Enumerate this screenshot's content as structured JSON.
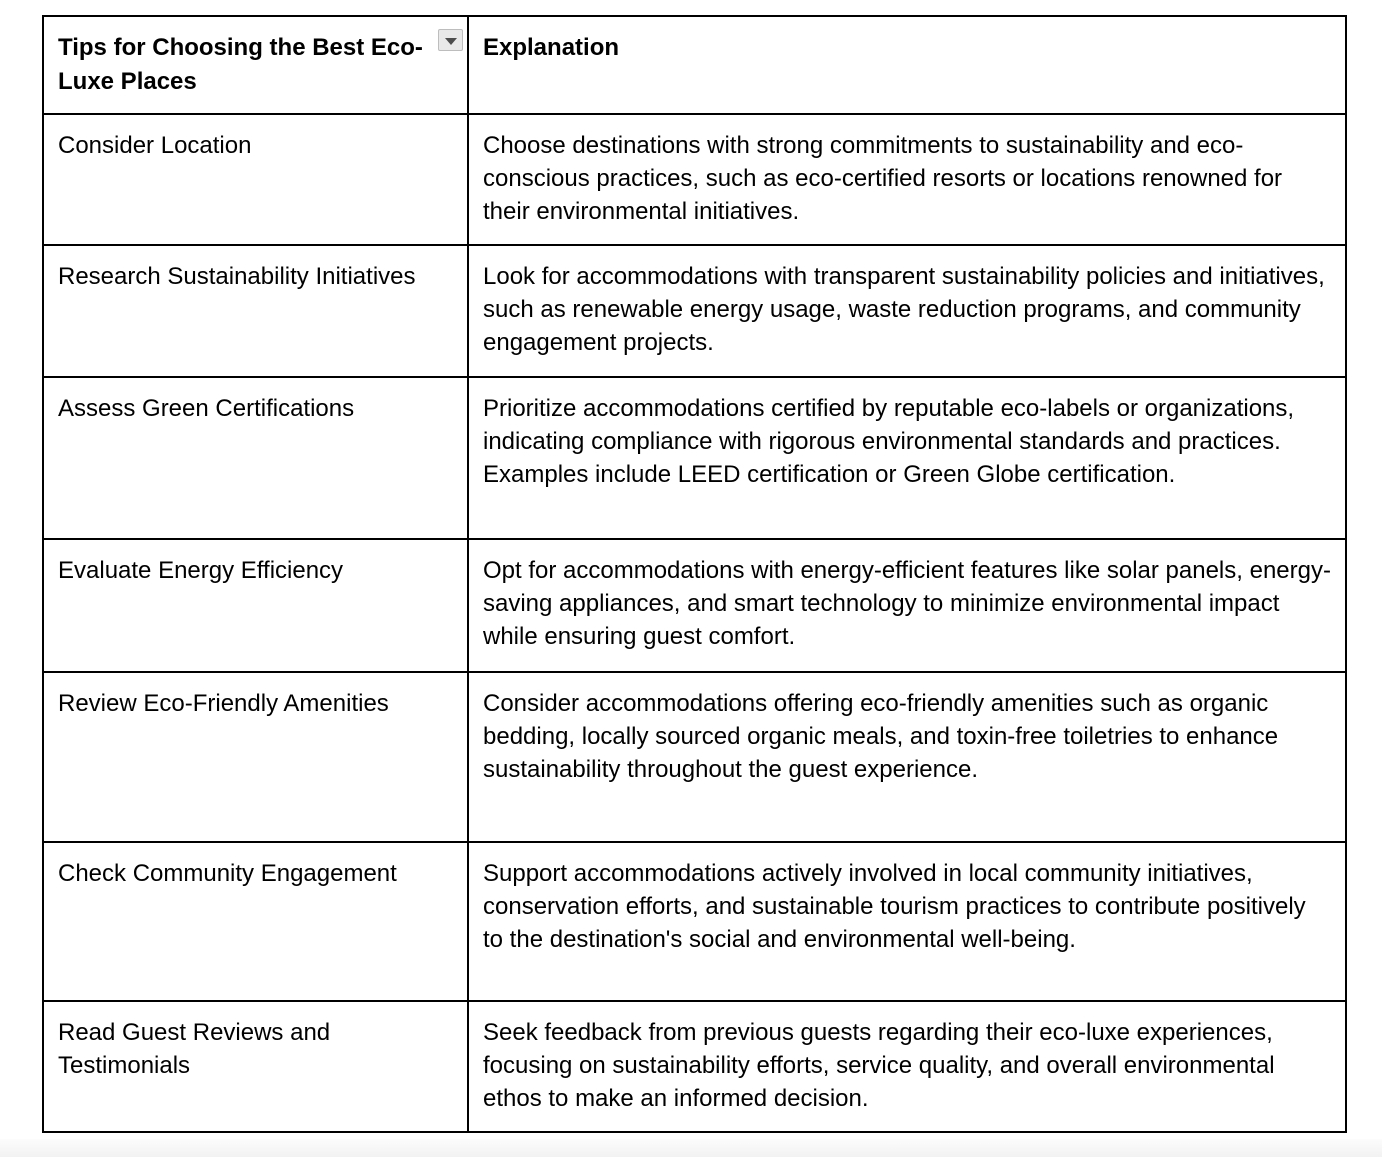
{
  "table": {
    "border_color": "#000000",
    "header": {
      "tips_label": "Tips for Choosing the Best Eco-Luxe Places",
      "explanation_label": "Explanation",
      "filter_icon": "dropdown-arrow-icon",
      "filter_button_bg": "#e9e9e9",
      "filter_arrow_color": "#4d4d4d"
    },
    "rows": [
      {
        "tip": "Consider Location",
        "explanation": "Choose destinations with strong commitments to sustainability and eco-conscious practices, such as eco-certified resorts or locations renowned for their environmental initiatives."
      },
      {
        "tip": "Research Sustainability Initiatives",
        "explanation": "Look for accommodations with transparent sustainability policies and initiatives, such as renewable energy usage, waste reduction programs, and community engagement projects."
      },
      {
        "tip": "Assess Green Certifications",
        "explanation": "Prioritize accommodations certified by reputable eco-labels or organizations, indicating compliance with rigorous environmental standards and practices. Examples include LEED certification or Green Globe certification."
      },
      {
        "tip": "Evaluate Energy Efficiency",
        "explanation": "Opt for accommodations with energy-efficient features like solar panels, energy-saving appliances, and smart technology to minimize environmental impact while ensuring guest comfort."
      },
      {
        "tip": "Review Eco-Friendly Amenities",
        "explanation": "Consider accommodations offering eco-friendly amenities such as organic bedding, locally sourced organic meals, and toxin-free toiletries to enhance sustainability throughout the guest experience."
      },
      {
        "tip": "Check Community Engagement",
        "explanation": "Support accommodations actively involved in local community initiatives, conservation efforts, and sustainable tourism practices to contribute positively to the destination's social and environmental well-being."
      },
      {
        "tip": "Read Guest Reviews and Testimonials",
        "explanation": "Seek feedback from previous guests regarding their eco-luxe experiences, focusing on sustainability efforts, service quality, and overall environmental ethos to make an informed decision."
      }
    ]
  }
}
